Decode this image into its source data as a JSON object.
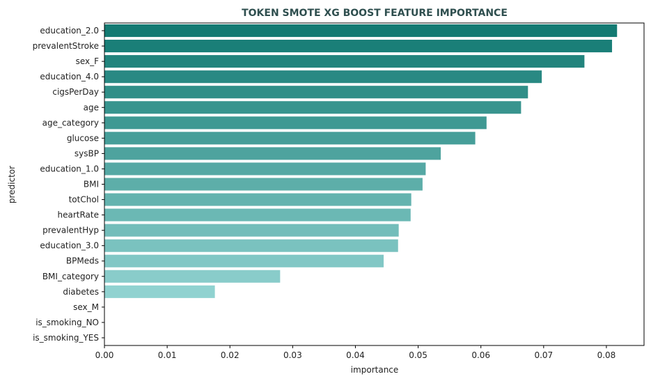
{
  "chart_data": {
    "type": "bar",
    "orientation": "horizontal",
    "title": "TOKEN SMOTE XG BOOST FEATURE IMPORTANCE",
    "xlabel": "importance",
    "ylabel": "predictor",
    "categories": [
      "education_2.0",
      "prevalentStroke",
      "sex_F",
      "education_4.0",
      "cigsPerDay",
      "age",
      "age_category",
      "glucose",
      "sysBP",
      "education_1.0",
      "BMI",
      "totChol",
      "heartRate",
      "prevalentHyp",
      "education_3.0",
      "BPMeds",
      "BMI_category",
      "diabetes",
      "sex_M",
      "is_smoking_NO",
      "is_smoking_YES"
    ],
    "values": [
      0.0817,
      0.0809,
      0.0765,
      0.0697,
      0.0675,
      0.0664,
      0.0609,
      0.0591,
      0.0536,
      0.0512,
      0.0507,
      0.0489,
      0.0488,
      0.0469,
      0.0468,
      0.0445,
      0.028,
      0.0176,
      0.0,
      0.0,
      0.0
    ],
    "xlim": [
      0,
      0.086
    ],
    "xticks": [
      "0.00",
      "0.01",
      "0.02",
      "0.03",
      "0.04",
      "0.05",
      "0.06",
      "0.07",
      "0.08"
    ],
    "grid": false,
    "colors": {
      "bar_start": "#137a72",
      "bar_end": "#a6e1e0",
      "title": "#2f4f4f"
    }
  }
}
